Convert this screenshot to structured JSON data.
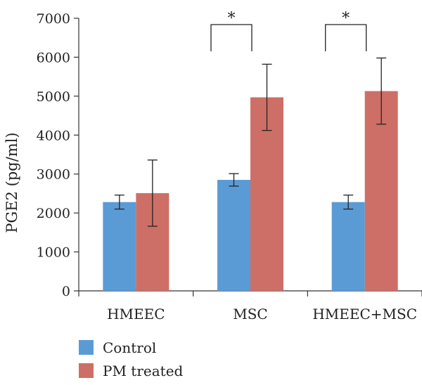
{
  "chart_data": {
    "type": "bar",
    "title": "",
    "xlabel": "",
    "ylabel": "PGE2 (pg/ml)",
    "ylim": [
      0,
      7000
    ],
    "yticks": [
      0,
      1000,
      2000,
      3000,
      4000,
      5000,
      6000,
      7000
    ],
    "categories": [
      "HMEEC",
      "MSC",
      "HMEEC+MSC"
    ],
    "series": [
      {
        "name": "Control",
        "color": "#5b9bd5",
        "values": [
          2280,
          2850,
          2280
        ],
        "errors": [
          180,
          160,
          180
        ]
      },
      {
        "name": "PM treated",
        "color": "#cd6f66",
        "values": [
          2510,
          4970,
          5130
        ],
        "errors": [
          850,
          850,
          850
        ]
      }
    ],
    "significance": [
      {
        "category_index": 1,
        "label": "*"
      },
      {
        "category_index": 2,
        "label": "*"
      }
    ],
    "legend_position": "bottom-left",
    "grid": false
  }
}
